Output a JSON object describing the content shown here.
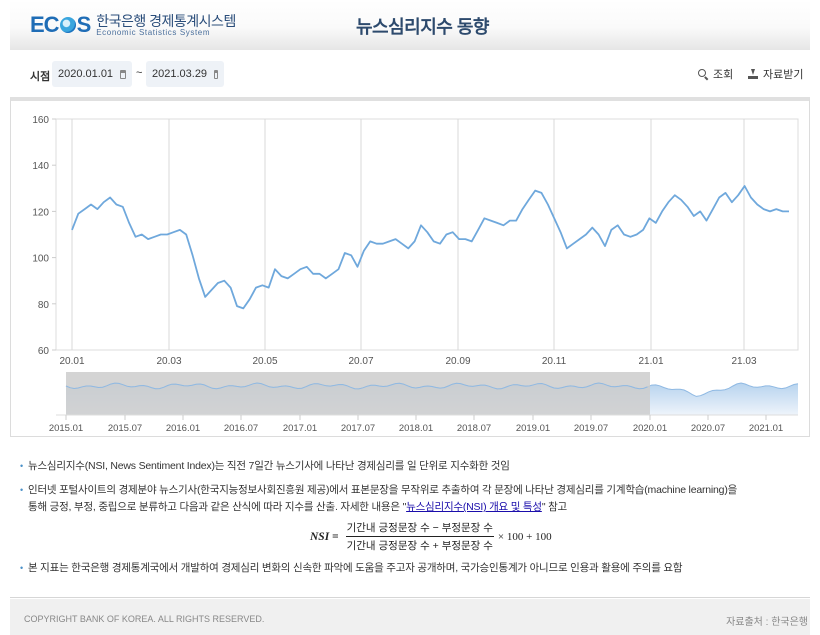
{
  "header": {
    "logo_mark": "ECOS",
    "logo_kr": "한국은행 경제통계시스템",
    "logo_en": "Economic Statistics System",
    "title": "뉴스심리지수 동향"
  },
  "toolbar": {
    "period_label": "시점",
    "start_date": "2020.01.01",
    "end_date": "2021.03.29",
    "range_separator": "~",
    "search_label": "조회",
    "download_label": "자료받기",
    "icons": {
      "calendar": "calendar-icon",
      "search": "search-icon",
      "download": "download-icon"
    }
  },
  "colors": {
    "line": "#6fa8dc",
    "navigator_fill_top": "#b7d3ee",
    "navigator_fill_bottom": "#eef4fb",
    "navigator_mask": "#cccccc",
    "title": "#2d4a6d",
    "logo": "#1f6db6",
    "link": "#1a0dab"
  },
  "chart_data": {
    "type": "line",
    "title": "",
    "xlabel": "",
    "ylabel": "",
    "ylim": [
      60,
      160
    ],
    "yticks": [
      60,
      80,
      100,
      120,
      140,
      160
    ],
    "xticks": [
      "20.01",
      "20.03",
      "20.05",
      "20.07",
      "20.09",
      "20.11",
      "21.01",
      "21.03"
    ],
    "grid": {
      "vertical": true,
      "horizontal": false
    },
    "legend": null,
    "series": [
      {
        "name": "뉴스심리지수",
        "x": [
          "20.01.01",
          "20.01.04",
          "20.01.08",
          "20.01.12",
          "20.01.16",
          "20.01.20",
          "20.01.24",
          "20.01.28",
          "20.02.01",
          "20.02.05",
          "20.02.09",
          "20.02.13",
          "20.02.17",
          "20.02.21",
          "20.02.25",
          "20.02.29",
          "20.03.04",
          "20.03.08",
          "20.03.12",
          "20.03.16",
          "20.03.20",
          "20.03.24",
          "20.03.28",
          "20.04.01",
          "20.04.05",
          "20.04.09",
          "20.04.13",
          "20.04.17",
          "20.04.21",
          "20.04.25",
          "20.04.29",
          "20.05.03",
          "20.05.07",
          "20.05.11",
          "20.05.15",
          "20.05.19",
          "20.05.23",
          "20.05.27",
          "20.05.31",
          "20.06.04",
          "20.06.08",
          "20.06.12",
          "20.06.16",
          "20.06.20",
          "20.06.24",
          "20.06.28",
          "20.07.02",
          "20.07.06",
          "20.07.10",
          "20.07.14",
          "20.07.18",
          "20.07.22",
          "20.07.26",
          "20.07.30",
          "20.08.03",
          "20.08.07",
          "20.08.11",
          "20.08.15",
          "20.08.19",
          "20.08.23",
          "20.08.27",
          "20.08.31",
          "20.09.04",
          "20.09.08",
          "20.09.12",
          "20.09.16",
          "20.09.20",
          "20.09.24",
          "20.09.28",
          "20.10.02",
          "20.10.06",
          "20.10.10",
          "20.10.14",
          "20.10.18",
          "20.10.22",
          "20.10.26",
          "20.10.30",
          "20.11.03",
          "20.11.07",
          "20.11.11",
          "20.11.15",
          "20.11.19",
          "20.11.23",
          "20.11.27",
          "20.12.01",
          "20.12.05",
          "20.12.09",
          "20.12.13",
          "20.12.17",
          "20.12.21",
          "20.12.25",
          "20.12.29",
          "21.01.02",
          "21.01.06",
          "21.01.10",
          "21.01.14",
          "21.01.18",
          "21.01.22",
          "21.01.26",
          "21.01.30",
          "21.02.03",
          "21.02.07",
          "21.02.11",
          "21.02.15",
          "21.02.19",
          "21.02.23",
          "21.02.27",
          "21.03.03",
          "21.03.07",
          "21.03.11",
          "21.03.15",
          "21.03.19",
          "21.03.23",
          "21.03.29"
        ],
        "values": [
          112,
          119,
          121,
          123,
          121,
          124,
          126,
          123,
          122,
          115,
          109,
          110,
          108,
          109,
          110,
          110,
          111,
          112,
          110,
          101,
          91,
          83,
          86,
          89,
          90,
          87,
          79,
          78,
          82,
          87,
          88,
          87,
          95,
          92,
          91,
          93,
          95,
          96,
          93,
          93,
          91,
          93,
          95,
          102,
          101,
          96,
          103,
          107,
          106,
          106,
          107,
          108,
          106,
          104,
          107,
          114,
          111,
          107,
          106,
          110,
          111,
          108,
          108,
          107,
          112,
          117,
          116,
          115,
          114,
          116,
          116,
          121,
          125,
          129,
          128,
          123,
          117,
          111,
          104,
          106,
          108,
          110,
          113,
          110,
          105,
          112,
          114,
          110,
          109,
          110,
          112,
          117,
          115,
          120,
          124,
          127,
          125,
          122,
          118,
          120,
          116,
          121,
          126,
          128,
          124,
          127,
          131,
          126,
          123,
          121,
          120,
          121,
          120,
          120
        ]
      }
    ],
    "navigator": {
      "xticks": [
        "2015.01",
        "2015.07",
        "2016.01",
        "2016.07",
        "2017.01",
        "2017.07",
        "2018.01",
        "2018.07",
        "2019.01",
        "2019.07",
        "2020.01",
        "2020.07",
        "2021.01"
      ],
      "selected_range": [
        "2020.01",
        "2021.03"
      ]
    }
  },
  "notes": {
    "item1": "뉴스심리지수(NSI, News Sentiment Index)는 직전 7일간 뉴스기사에 나타난 경제심리를 일 단위로 지수화한 것임",
    "item2_line1": "인터넷 포털사이트의 경제분야 뉴스기사(한국지능정보사회진흥원 제공)에서 표본문장을 무작위로 추출하여 각 문장에 나타난 경제심리를 기계학습(machine learning)을",
    "item2_line2_prefix": "통해 긍정, 부정, 중립으로 분류하고 다음과 같은 산식에 따라 지수를 산출. 자세한 내용은 \"",
    "item2_link": "뉴스심리지수(NSI) 개요 및 특성",
    "item2_line2_suffix": "\" 참고",
    "formula_lhs": "NSI =",
    "formula_numerator": "기간내 긍정문장 수 − 부정문장 수",
    "formula_denominator": "기간내 긍정문장 수 + 부정문장 수",
    "formula_rhs": "× 100 + 100",
    "item3": "본 지표는 한국은행 경제통계국에서 개발하여 경제심리 변화의 신속한 파악에 도움을 주고자 공개하며, 국가승인통계가 아니므로 인용과 활용에 주의를 요함",
    "bullet": "•"
  },
  "footer": {
    "copyright": "COPYRIGHT BANK OF KOREA. ALL RIGHTS RESERVED.",
    "source": "자료출처 : 한국은행"
  }
}
